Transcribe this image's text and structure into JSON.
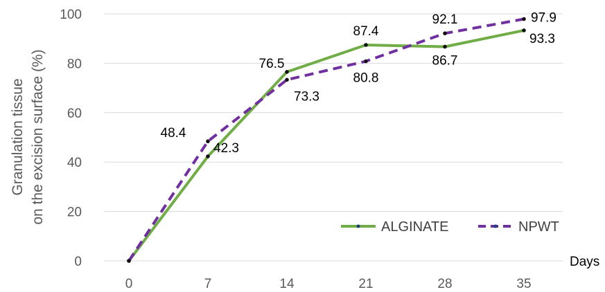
{
  "chart_data": {
    "type": "line",
    "title": "",
    "xlabel": "Days",
    "ylabel_line1": "Granulation tissue",
    "ylabel_line2": "on the excision surface (%)",
    "x": [
      0,
      7,
      14,
      21,
      28,
      35
    ],
    "x_tick_labels": [
      "0",
      "7",
      "14",
      "21",
      "28",
      "35"
    ],
    "y_tick_labels": [
      "0",
      "20",
      "40",
      "60",
      "80",
      "100"
    ],
    "ylim": [
      0,
      100
    ],
    "grid": true,
    "legend_position": "bottom-right",
    "series": [
      {
        "name": "ALGINATE",
        "color": "#70ad47",
        "style": "solid",
        "values": [
          0,
          42.3,
          76.5,
          87.4,
          86.7,
          93.3
        ],
        "labels": [
          "",
          "42.3",
          "76.5",
          "87.4",
          "86.7",
          "93.3"
        ]
      },
      {
        "name": "NPWT",
        "color": "#7030a0",
        "style": "dashed",
        "values": [
          0,
          48.4,
          73.3,
          80.8,
          92.1,
          97.9
        ],
        "labels": [
          "",
          "48.4",
          "73.3",
          "80.8",
          "92.1",
          "97.9"
        ]
      }
    ]
  }
}
